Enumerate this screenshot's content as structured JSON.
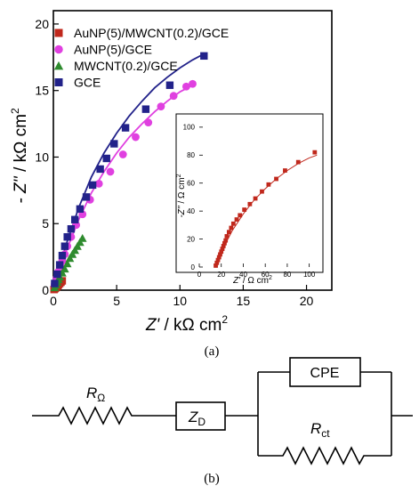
{
  "panel_labels": {
    "a": "(a)",
    "b": "(b)"
  },
  "chart_data": [
    {
      "type": "scatter",
      "xlabel": {
        "sym": "Z'",
        "unit": " / kΩ cm",
        "sup": "2"
      },
      "ylabel": {
        "sym": "- Z''",
        "unit": " / kΩ cm",
        "sup": "2"
      },
      "xlim": [
        0,
        22
      ],
      "ylim": [
        0,
        21
      ],
      "xticks": [
        "0",
        "5",
        "10",
        "15",
        "20"
      ],
      "yticks": [
        "0",
        "5",
        "10",
        "15",
        "20"
      ],
      "legend_position": "top-left",
      "series": [
        {
          "name": "AuNP(5)/MWCNT(0.2)/GCE",
          "marker": "square",
          "color": "#c0281c",
          "points": [
            [
              0.05,
              0.05
            ],
            [
              0.1,
              0.1
            ],
            [
              0.15,
              0.15
            ],
            [
              0.2,
              0.2
            ],
            [
              0.25,
              0.25
            ],
            [
              0.3,
              0.3
            ],
            [
              0.35,
              0.35
            ],
            [
              0.4,
              0.4
            ],
            [
              0.5,
              0.5
            ],
            [
              0.6,
              0.6
            ],
            [
              0.7,
              0.7
            ]
          ]
        },
        {
          "name": "AuNP(5)/GCE",
          "marker": "circle",
          "color": "#e040e0",
          "points": [
            [
              0.1,
              0.4
            ],
            [
              0.25,
              0.9
            ],
            [
              0.4,
              1.4
            ],
            [
              0.55,
              1.8
            ],
            [
              0.7,
              2.2
            ],
            [
              0.9,
              2.7
            ],
            [
              1.1,
              3.3
            ],
            [
              1.4,
              4.0
            ],
            [
              1.8,
              4.9
            ],
            [
              2.3,
              5.7
            ],
            [
              2.9,
              6.8
            ],
            [
              3.6,
              8.0
            ],
            [
              4.5,
              8.9
            ],
            [
              5.5,
              10.2
            ],
            [
              6.5,
              11.5
            ],
            [
              7.5,
              12.6
            ],
            [
              8.5,
              13.8
            ],
            [
              9.5,
              14.6
            ],
            [
              10.5,
              15.3
            ],
            [
              11.0,
              15.5
            ]
          ],
          "fit": [
            [
              0,
              0
            ],
            [
              1,
              2.9
            ],
            [
              2,
              5.3
            ],
            [
              3,
              7.3
            ],
            [
              4,
              8.9
            ],
            [
              5,
              10.3
            ],
            [
              6,
              11.5
            ],
            [
              7,
              12.5
            ],
            [
              8,
              13.4
            ],
            [
              9,
              14.2
            ],
            [
              10,
              14.9
            ],
            [
              11,
              15.4
            ]
          ]
        },
        {
          "name": "MWCNT(0.2)/GCE",
          "marker": "triangle",
          "color": "#2e8b2e",
          "points": [
            [
              0.1,
              0.2
            ],
            [
              0.2,
              0.4
            ],
            [
              0.3,
              0.6
            ],
            [
              0.4,
              0.8
            ],
            [
              0.5,
              1.0
            ],
            [
              0.7,
              1.3
            ],
            [
              0.9,
              1.6
            ],
            [
              1.1,
              2.0
            ],
            [
              1.3,
              2.4
            ],
            [
              1.5,
              2.7
            ],
            [
              1.7,
              3.0
            ],
            [
              1.9,
              3.3
            ],
            [
              2.1,
              3.6
            ],
            [
              2.3,
              3.9
            ]
          ]
        },
        {
          "name": "GCE",
          "marker": "square",
          "color": "#22228a",
          "points": [
            [
              0.1,
              0.5
            ],
            [
              0.3,
              1.2
            ],
            [
              0.5,
              1.9
            ],
            [
              0.7,
              2.6
            ],
            [
              0.9,
              3.3
            ],
            [
              1.1,
              4.0
            ],
            [
              1.4,
              4.6
            ],
            [
              1.7,
              5.3
            ],
            [
              2.1,
              6.1
            ],
            [
              2.6,
              7.0
            ],
            [
              3.1,
              7.9
            ],
            [
              3.7,
              9.1
            ],
            [
              4.2,
              9.9
            ],
            [
              4.8,
              11.0
            ],
            [
              5.7,
              12.2
            ],
            [
              7.3,
              13.6
            ],
            [
              9.2,
              15.4
            ],
            [
              11.9,
              17.6
            ]
          ],
          "fit": [
            [
              0,
              0
            ],
            [
              1,
              3.4
            ],
            [
              2,
              6.2
            ],
            [
              3,
              8.5
            ],
            [
              4,
              10.3
            ],
            [
              5,
              11.8
            ],
            [
              6,
              13.1
            ],
            [
              7,
              14.2
            ],
            [
              8,
              15.2
            ],
            [
              9,
              16.0
            ],
            [
              10,
              16.7
            ],
            [
              11,
              17.3
            ],
            [
              12,
              17.8
            ]
          ]
        }
      ]
    },
    {
      "type": "scatter",
      "xlabel": {
        "sym": "Z'",
        "unit": " / Ω cm",
        "sup": "2"
      },
      "ylabel": {
        "sym": "-Z''",
        "unit": " / Ω cm",
        "sup": "2"
      },
      "xlim": [
        0,
        110
      ],
      "ylim": [
        0,
        105
      ],
      "xticks": [
        "0",
        "20",
        "40",
        "60",
        "80",
        "100"
      ],
      "yticks": [
        "0",
        "20",
        "40",
        "60",
        "80",
        "100"
      ],
      "series": [
        {
          "name": "AuNP(5)/MWCNT(0.2)/GCE",
          "marker": "square",
          "color": "#c0281c",
          "points": [
            [
              15,
              1
            ],
            [
              16,
              3
            ],
            [
              17,
              5
            ],
            [
              18,
              7
            ],
            [
              19,
              9
            ],
            [
              20,
              11
            ],
            [
              21,
              13
            ],
            [
              22,
              15
            ],
            [
              23,
              17
            ],
            [
              24,
              19
            ],
            [
              25,
              22
            ],
            [
              27,
              25
            ],
            [
              29,
              28
            ],
            [
              31,
              31
            ],
            [
              34,
              34
            ],
            [
              37,
              37
            ],
            [
              41,
              41
            ],
            [
              46,
              45
            ],
            [
              51,
              49
            ],
            [
              57,
              54
            ],
            [
              63,
              59
            ],
            [
              70,
              63
            ],
            [
              78,
              69
            ],
            [
              90,
              75
            ],
            [
              105,
              82
            ]
          ],
          "fit": [
            [
              14,
              0
            ],
            [
              18,
              6
            ],
            [
              22,
              13
            ],
            [
              26,
              20
            ],
            [
              30,
              26
            ],
            [
              35,
              32
            ],
            [
              40,
              38
            ],
            [
              45,
              43
            ],
            [
              50,
              48
            ],
            [
              55,
              52
            ],
            [
              60,
              56
            ],
            [
              70,
              63
            ],
            [
              80,
              69
            ],
            [
              90,
              74
            ],
            [
              100,
              78
            ],
            [
              107,
              80
            ]
          ]
        }
      ]
    }
  ],
  "circuit": {
    "r_omega": {
      "main": "R",
      "sub": "Ω"
    },
    "z_d": {
      "main": "Z",
      "sub": "D"
    },
    "cpe": "CPE",
    "r_ct": {
      "main": "R",
      "sub": "ct"
    }
  }
}
